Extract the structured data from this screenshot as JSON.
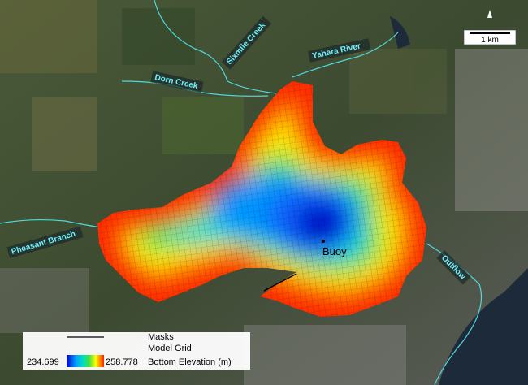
{
  "map": {
    "labels": {
      "sixmile": "Sixmile Creek",
      "yahara": "Yahara River",
      "dorn": "Dorn Creek",
      "pheasant": "Pheasant Branch",
      "outflow": "Outflow",
      "buoy": "Buoy"
    },
    "scale_bar": "1 km",
    "legend": {
      "masks": "Masks",
      "grid": "Model Grid",
      "colorbar_title": "Bottom Elevation (m)",
      "min": 234.699,
      "max": 258.778
    }
  }
}
